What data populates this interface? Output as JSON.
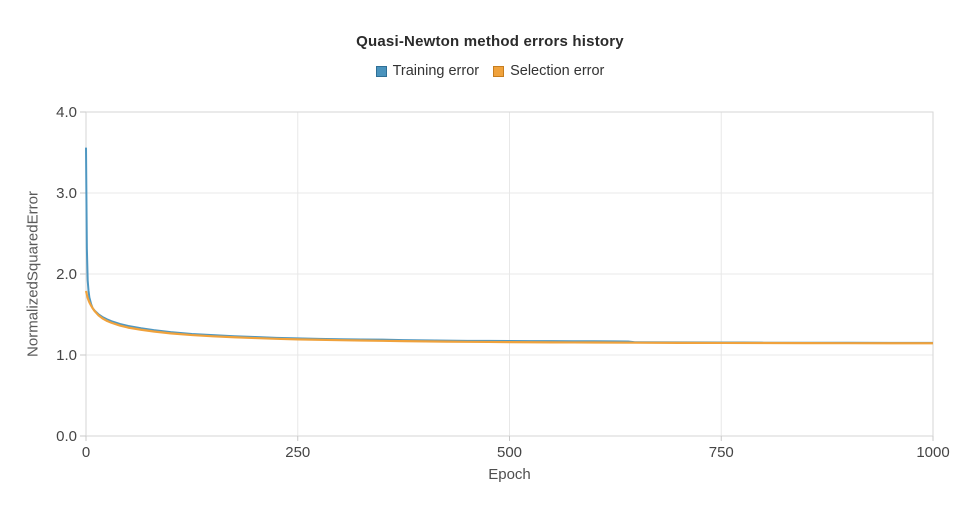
{
  "chart": {
    "title": "Quasi-Newton method errors history",
    "x_axis_label": "Epoch",
    "y_axis_label": "NormalizedSquaredError"
  },
  "legend": {
    "items": [
      {
        "label": "Training error",
        "fill": "#4a93bd",
        "border": "#2f6f96"
      },
      {
        "label": "Selection error",
        "fill": "#f0a23c",
        "border": "#c67d1f"
      }
    ]
  },
  "colors": {
    "background": "#ffffff",
    "gridline": "#e8e8e8",
    "plot_border": "#d6d6d6",
    "tick_mark": "#c9c9c9",
    "tick_label": "#454545",
    "training_line": "#4f97c1",
    "selection_line": "#f0a23c"
  },
  "chart_data": {
    "type": "line",
    "title": "Quasi-Newton method errors history",
    "xlabel": "Epoch",
    "ylabel": "NormalizedSquaredError",
    "xlim": [
      0,
      1000
    ],
    "ylim": [
      0.0,
      4.0
    ],
    "grid": true,
    "legend_position": "top",
    "x_ticks": [
      {
        "value": 0,
        "label": "0"
      },
      {
        "value": 250,
        "label": "250"
      },
      {
        "value": 500,
        "label": "500"
      },
      {
        "value": 750,
        "label": "750"
      },
      {
        "value": 1000,
        "label": "1000"
      }
    ],
    "y_ticks": [
      {
        "value": 0,
        "label": "0.0"
      },
      {
        "value": 1,
        "label": "1.0"
      },
      {
        "value": 2,
        "label": "2.0"
      },
      {
        "value": 3,
        "label": "3.0"
      },
      {
        "value": 4,
        "label": "4.0"
      }
    ],
    "series": [
      {
        "name": "Training error",
        "color": "#4f97c1",
        "width": 2,
        "points": [
          [
            0,
            3.56
          ],
          [
            1,
            2.32
          ],
          [
            2,
            1.92
          ],
          [
            3,
            1.79
          ],
          [
            4,
            1.71
          ],
          [
            6,
            1.63
          ],
          [
            8,
            1.575
          ],
          [
            10,
            1.55
          ],
          [
            15,
            1.5
          ],
          [
            20,
            1.465
          ],
          [
            25,
            1.44
          ],
          [
            30,
            1.418
          ],
          [
            40,
            1.383
          ],
          [
            50,
            1.358
          ],
          [
            65,
            1.33
          ],
          [
            80,
            1.307
          ],
          [
            100,
            1.283
          ],
          [
            125,
            1.26
          ],
          [
            150,
            1.245
          ],
          [
            175,
            1.232
          ],
          [
            200,
            1.222
          ],
          [
            225,
            1.212
          ],
          [
            250,
            1.205
          ],
          [
            275,
            1.199
          ],
          [
            300,
            1.195
          ],
          [
            325,
            1.192
          ],
          [
            350,
            1.19
          ],
          [
            375,
            1.184
          ],
          [
            400,
            1.18
          ],
          [
            425,
            1.177
          ],
          [
            450,
            1.175
          ],
          [
            475,
            1.174
          ],
          [
            500,
            1.173
          ],
          [
            525,
            1.172
          ],
          [
            550,
            1.171
          ],
          [
            575,
            1.17
          ],
          [
            600,
            1.169
          ],
          [
            625,
            1.168
          ],
          [
            640,
            1.167
          ],
          [
            648,
            1.158
          ],
          [
            700,
            1.156
          ],
          [
            750,
            1.155
          ],
          [
            775,
            1.154
          ],
          [
            800,
            1.152
          ],
          [
            850,
            1.151
          ],
          [
            900,
            1.151
          ],
          [
            950,
            1.15
          ],
          [
            1000,
            1.15
          ]
        ]
      },
      {
        "name": "Selection error",
        "color": "#f0a23c",
        "width": 2.2,
        "points": [
          [
            0,
            1.79
          ],
          [
            1,
            1.745
          ],
          [
            2,
            1.705
          ],
          [
            3,
            1.675
          ],
          [
            4,
            1.65
          ],
          [
            6,
            1.61
          ],
          [
            8,
            1.575
          ],
          [
            10,
            1.545
          ],
          [
            15,
            1.487
          ],
          [
            20,
            1.448
          ],
          [
            25,
            1.42
          ],
          [
            30,
            1.398
          ],
          [
            40,
            1.363
          ],
          [
            50,
            1.338
          ],
          [
            65,
            1.312
          ],
          [
            80,
            1.29
          ],
          [
            100,
            1.267
          ],
          [
            125,
            1.246
          ],
          [
            150,
            1.231
          ],
          [
            175,
            1.219
          ],
          [
            200,
            1.209
          ],
          [
            225,
            1.2
          ],
          [
            250,
            1.193
          ],
          [
            275,
            1.188
          ],
          [
            300,
            1.183
          ],
          [
            325,
            1.179
          ],
          [
            350,
            1.175
          ],
          [
            375,
            1.171
          ],
          [
            400,
            1.168
          ],
          [
            425,
            1.165
          ],
          [
            450,
            1.163
          ],
          [
            475,
            1.161
          ],
          [
            500,
            1.159
          ],
          [
            525,
            1.157
          ],
          [
            550,
            1.156
          ],
          [
            575,
            1.155
          ],
          [
            600,
            1.154
          ],
          [
            650,
            1.152
          ],
          [
            700,
            1.15
          ],
          [
            750,
            1.149
          ],
          [
            800,
            1.148
          ],
          [
            850,
            1.147
          ],
          [
            900,
            1.146
          ],
          [
            950,
            1.145
          ],
          [
            1000,
            1.145
          ]
        ]
      }
    ]
  }
}
